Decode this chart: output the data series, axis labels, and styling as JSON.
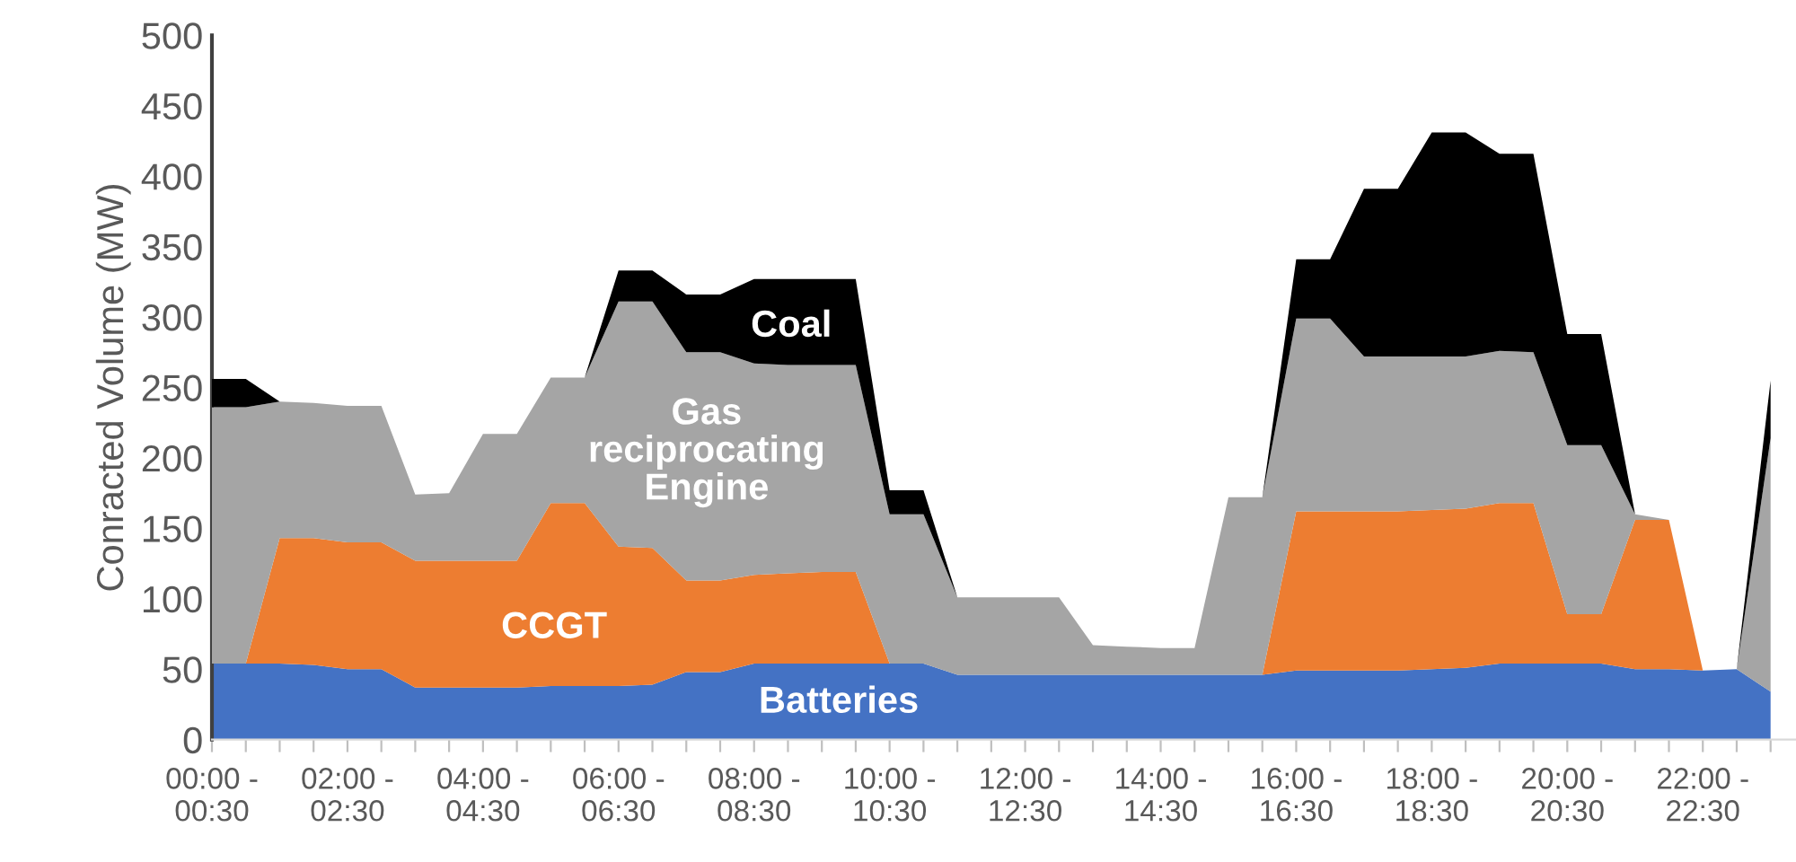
{
  "chart_data": {
    "type": "area",
    "stacked": true,
    "ylabel": "Conracted Volume (MW)",
    "categories": [
      "00:00 -\n00:30",
      null,
      null,
      null,
      "02:00 -\n02:30",
      null,
      null,
      null,
      "04:00 -\n04:30",
      null,
      null,
      null,
      "06:00 -\n06:30",
      null,
      null,
      null,
      "08:00 -\n08:30",
      null,
      null,
      null,
      "10:00 -\n10:30",
      null,
      null,
      null,
      "12:00 -\n12:30",
      null,
      null,
      null,
      "14:00 -\n14:30",
      null,
      null,
      null,
      "16:00 -\n16:30",
      null,
      null,
      null,
      "18:00 -\n18:30",
      null,
      null,
      null,
      "20:00 -\n20:30",
      null,
      null,
      null,
      "22:00 -\n22:30",
      null,
      null
    ],
    "series": [
      {
        "name": "Batteries",
        "color": "#4472c4",
        "values": [
          54,
          54,
          54,
          53,
          50,
          50,
          37,
          37,
          37,
          37,
          38,
          38,
          38,
          39,
          48,
          48,
          54,
          54,
          54,
          54,
          54,
          54,
          46,
          46,
          46,
          46,
          46,
          46,
          46,
          46,
          46,
          46,
          49,
          49,
          49,
          49,
          50,
          51,
          54,
          54,
          54,
          54,
          50,
          50,
          49,
          50,
          34
        ]
      },
      {
        "name": "CCGT",
        "color": "#ed7d31",
        "values": [
          0,
          0,
          89,
          90,
          90,
          90,
          90,
          90,
          90,
          90,
          130,
          130,
          99,
          97,
          65,
          65,
          63,
          64,
          65,
          65,
          0,
          0,
          0,
          0,
          0,
          0,
          0,
          0,
          0,
          0,
          0,
          0,
          113,
          113,
          113,
          113,
          113,
          113,
          114,
          114,
          35,
          35,
          106,
          106,
          0,
          0,
          0
        ]
      },
      {
        "name": "Gas\nreciprocating\nEngine",
        "color": "#a5a5a5",
        "values": [
          182,
          182,
          97,
          96,
          97,
          97,
          47,
          48,
          90,
          90,
          89,
          89,
          174,
          175,
          162,
          162,
          150,
          148,
          147,
          147,
          106,
          106,
          55,
          55,
          55,
          55,
          21,
          20,
          19,
          19,
          126,
          126,
          137,
          137,
          110,
          110,
          109,
          108,
          108,
          107,
          120,
          120,
          4,
          0,
          0,
          0,
          180
        ]
      },
      {
        "name": "Coal",
        "color": "#000000",
        "values": [
          20,
          20,
          0,
          0,
          0,
          0,
          0,
          0,
          0,
          0,
          0,
          0,
          22,
          22,
          41,
          41,
          60,
          61,
          61,
          61,
          17,
          17,
          0,
          0,
          0,
          0,
          0,
          0,
          0,
          0,
          0,
          0,
          42,
          42,
          119,
          119,
          159,
          159,
          140,
          141,
          79,
          79,
          0,
          0,
          0,
          0,
          41
        ]
      }
    ],
    "ylim": [
      0,
      500
    ],
    "yticks": [
      0,
      50,
      100,
      150,
      200,
      250,
      300,
      350,
      400,
      450,
      500
    ],
    "grid": false,
    "legend": false
  }
}
